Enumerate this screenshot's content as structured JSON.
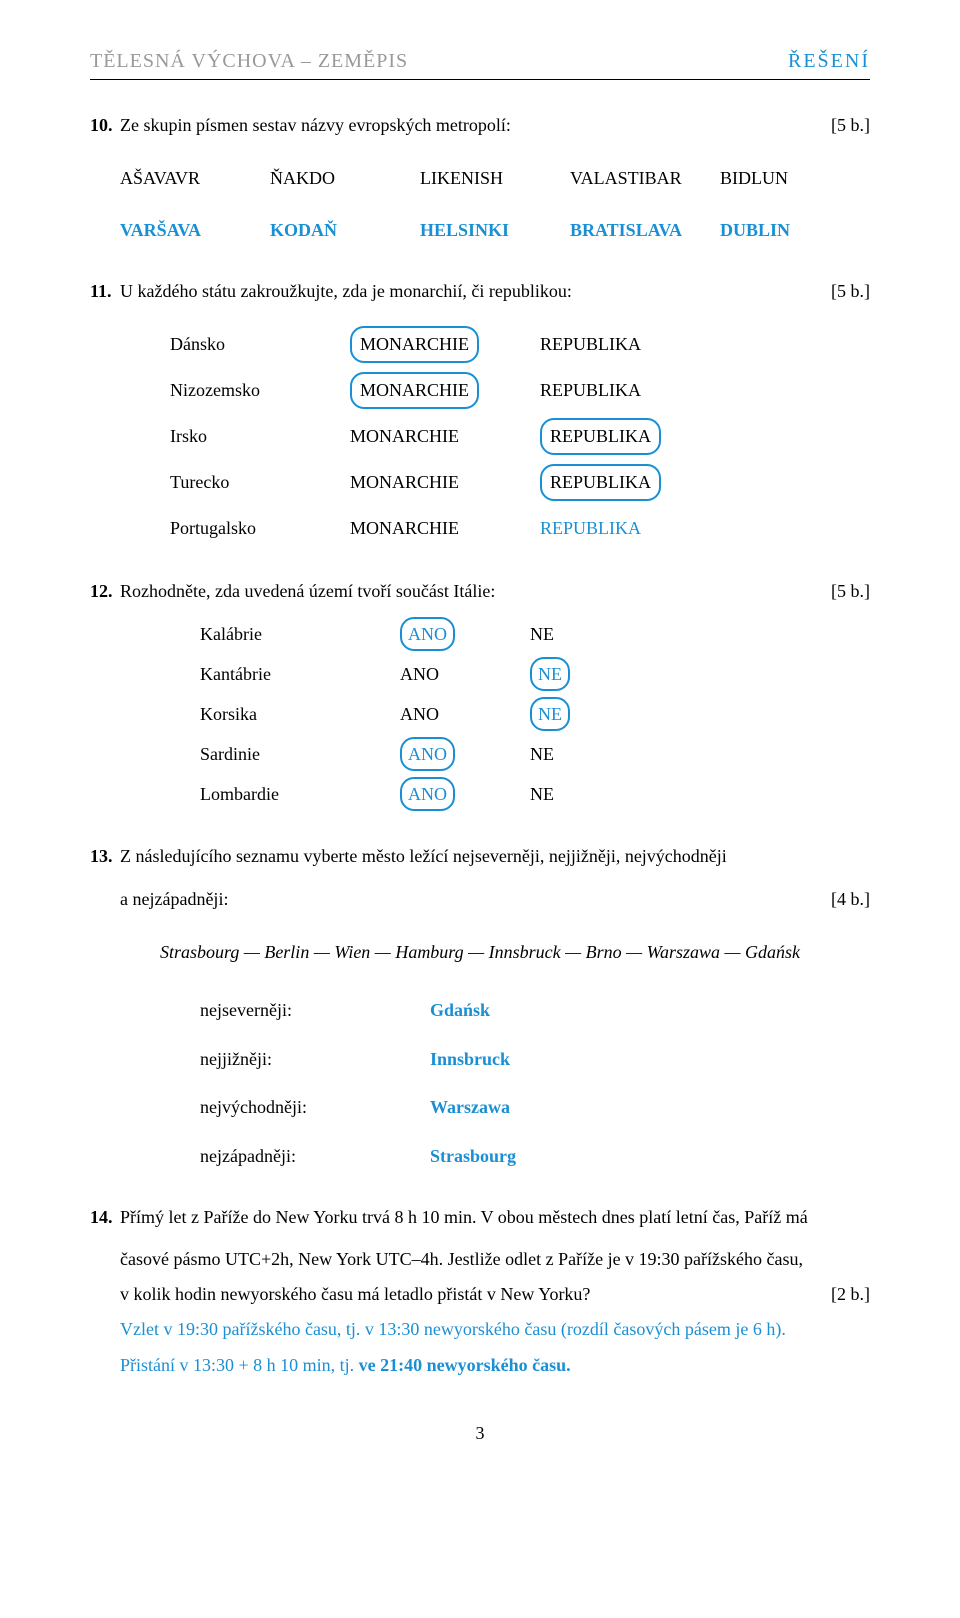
{
  "header": {
    "left": "TĚLESNÁ VÝCHOVA – ZEMĚPIS",
    "right": "ŘEŠENÍ"
  },
  "q10": {
    "num": "10.",
    "text": "Ze skupin písmen sestav názvy evropských metropolí:",
    "points": "[5 b.]",
    "scramble": [
      "AŠAVAVR",
      "ŇAKDO",
      "LIKENISH",
      "VALASTIBAR",
      "BIDLUN"
    ],
    "answers": [
      "VARŠAVA",
      "KODAŇ",
      "HELSINKI",
      "BRATISLAVA",
      "DUBLIN"
    ]
  },
  "q11": {
    "num": "11.",
    "text": "U každého státu zakroužkujte, zda je monarchií, či republikou:",
    "points": "[5 b.]",
    "rows": [
      {
        "country": "Dánsko",
        "opt1": "MONARCHIE",
        "opt2": "REPUBLIKA",
        "circle": 1,
        "extra_blue": false
      },
      {
        "country": "Nizozemsko",
        "opt1": "MONARCHIE",
        "opt2": "REPUBLIKA",
        "circle": 1,
        "extra_blue": false
      },
      {
        "country": "Irsko",
        "opt1": "MONARCHIE",
        "opt2": "REPUBLIKA",
        "circle": 2,
        "extra_blue": false
      },
      {
        "country": "Turecko",
        "opt1": "MONARCHIE",
        "opt2": "REPUBLIKA",
        "circle": 2,
        "extra_blue": false
      },
      {
        "country": "Portugalsko",
        "opt1": "MONARCHIE",
        "opt2": "REPUBLIKA",
        "circle": 0,
        "extra_blue": true
      }
    ]
  },
  "q12": {
    "num": "12.",
    "text": "Rozhodněte, zda uvedená území tvoří součást Itálie:",
    "points": "[5 b.]",
    "rows": [
      {
        "region": "Kalábrie",
        "ano": "ANO",
        "ne": "NE",
        "circle": 1
      },
      {
        "region": "Kantábrie",
        "ano": "ANO",
        "ne": "NE",
        "circle": 2
      },
      {
        "region": "Korsika",
        "ano": "ANO",
        "ne": "NE",
        "circle": 2
      },
      {
        "region": "Sardinie",
        "ano": "ANO",
        "ne": "NE",
        "circle": 1
      },
      {
        "region": "Lombardie",
        "ano": "ANO",
        "ne": "NE",
        "circle": 1
      }
    ]
  },
  "q13": {
    "num": "13.",
    "text1": "Z následujícího seznamu vyberte město ležící nejseverněji, nejjižněji, nejvýchodněji",
    "text2": "a nejzápadněji:",
    "points": "[4 b.]",
    "cities": "Strasbourg — Berlin — Wien — Hamburg — Innsbruck — Brno — Warszawa — Gdańsk",
    "dirs": [
      {
        "label": "nejseverněji:",
        "ans": "Gdańsk"
      },
      {
        "label": "nejjižněji:",
        "ans": "Innsbruck"
      },
      {
        "label": "nejvýchodněji:",
        "ans": "Warszawa"
      },
      {
        "label": "nejzápadněji:",
        "ans": "Strasbourg"
      }
    ]
  },
  "q14": {
    "num": "14.",
    "line1a": "Přímý let z Paříže do New Yorku trvá 8 h 10 min. V obou městech dnes platí letní čas, Paříž má",
    "line2": "časové pásmo UTC+2h, New York UTC–4h. Jestliže odlet z Paříže je v 19:30 pařížského času,",
    "line3": "v kolik hodin newyorského času má letadlo přistát v New Yorku?",
    "points": "[2 b.]",
    "ans1": "Vzlet v 19:30 pařížského času, tj. v 13:30 newyorského času (rozdíl časových pásem je 6 h).",
    "ans2a": "Přistání v 13:30 + 8 h 10 min, tj. ",
    "ans2b": "ve 21:40 newyorského času."
  },
  "footer": "3"
}
